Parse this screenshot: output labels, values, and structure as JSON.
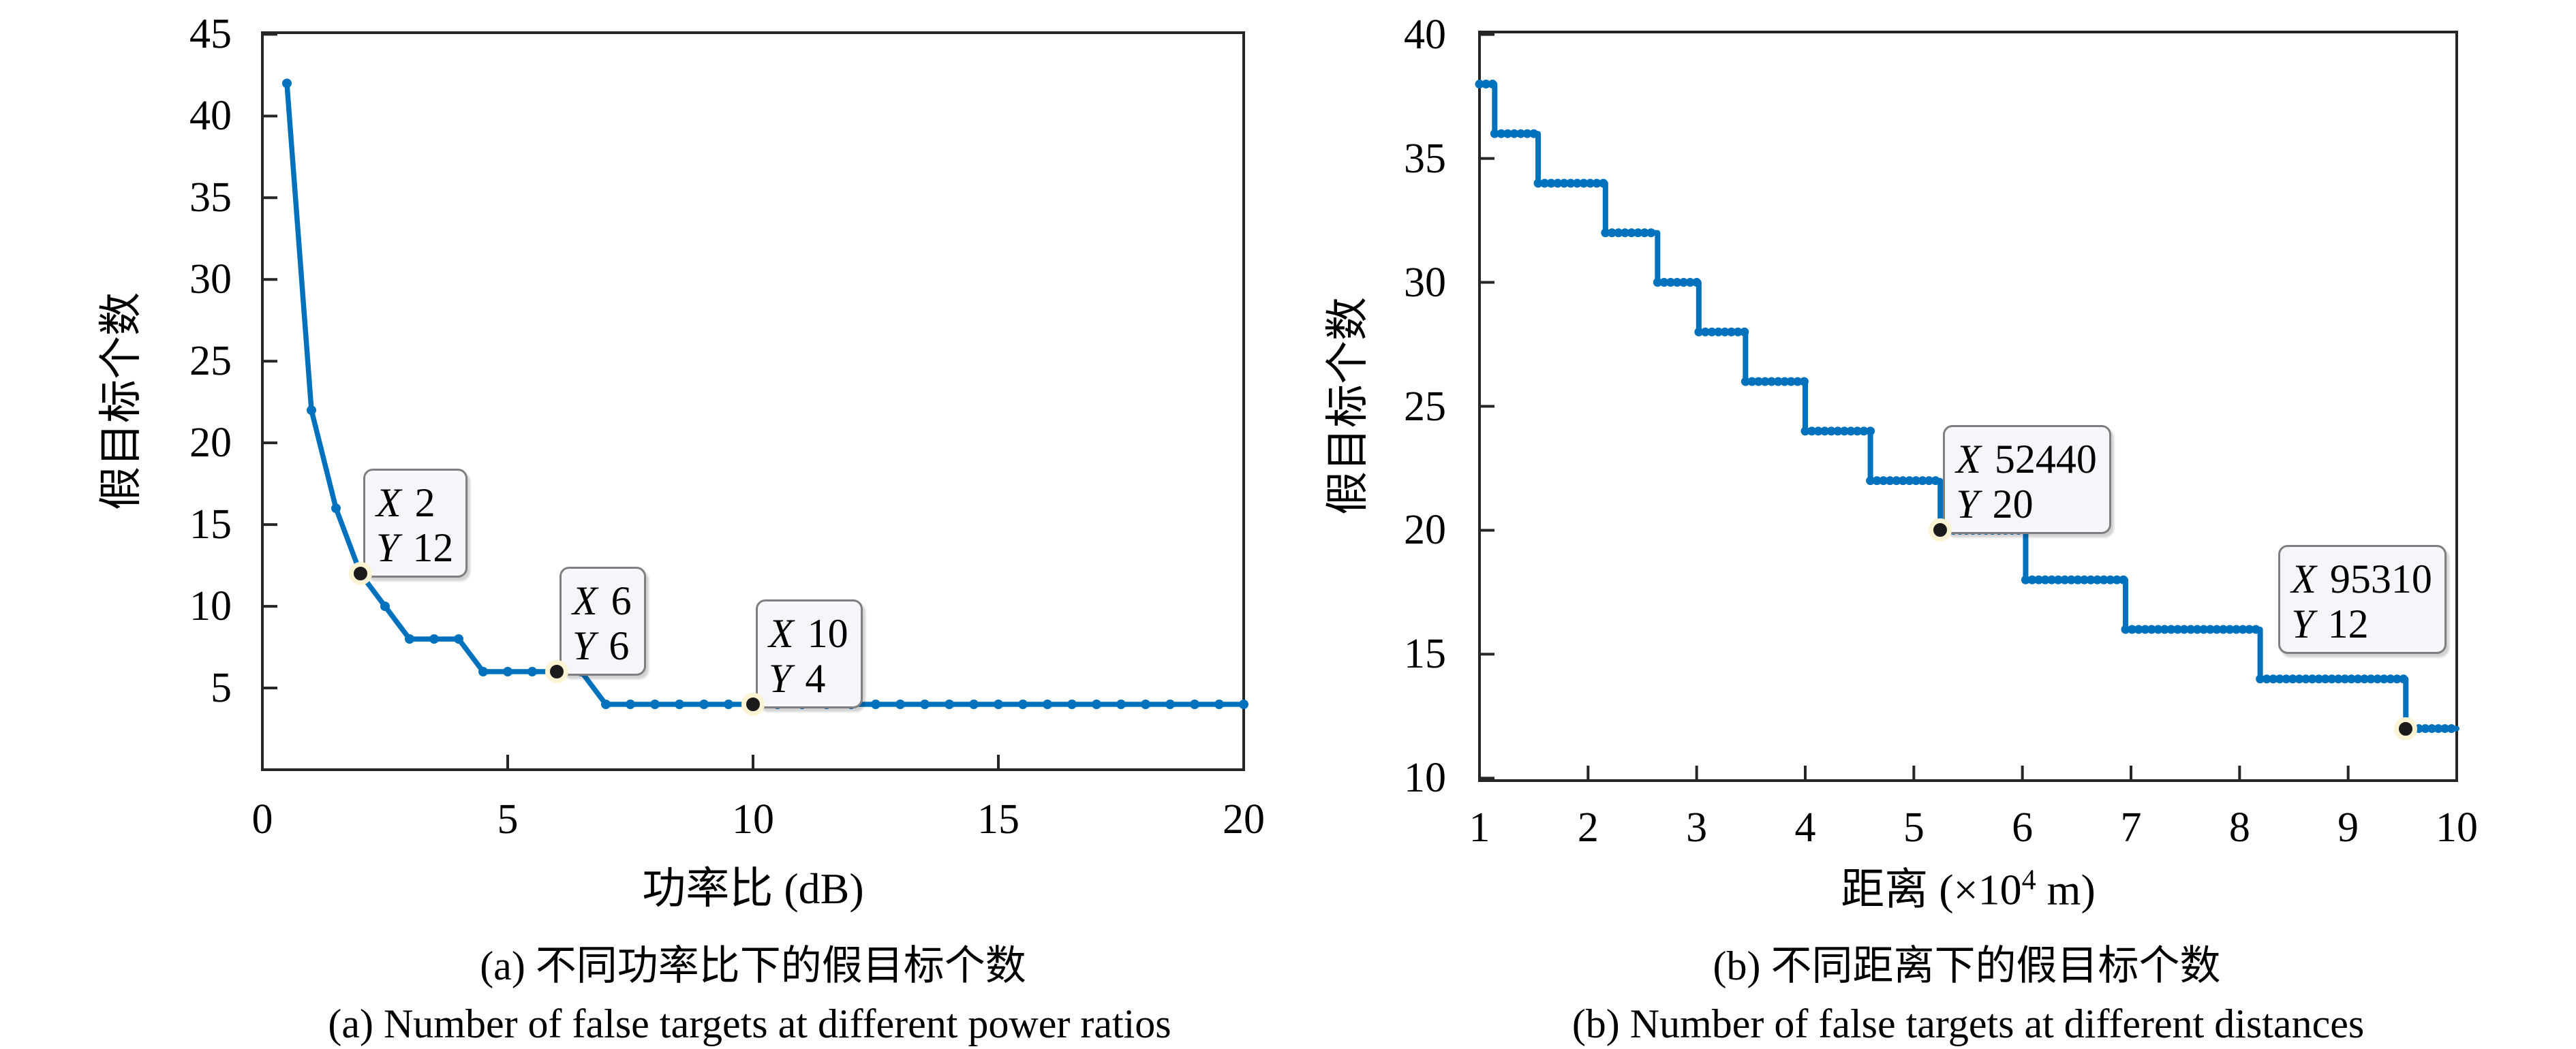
{
  "figure": {
    "background": "#ffffff",
    "line_color": "#0072BD",
    "axis_color": "#262626",
    "text_color": "#000000",
    "datatip_bg": "#f6f6fa",
    "datatip_border": "#7f7f7f",
    "highlight_dot_color": "#1a1a1a",
    "highlight_ring_color": "#fbf3d1"
  },
  "chart_data": [
    {
      "id": "power-ratio-chart",
      "type": "line",
      "title": "",
      "xlabel": "功率比 (dB)",
      "ylabel": "假目标个数",
      "caption_zh": "(a) 不同功率比下的假目标个数",
      "caption_en": "(a) Number of false targets at different power ratios",
      "xlim": [
        0,
        20
      ],
      "ylim": [
        0,
        45.1
      ],
      "xticks": [
        0,
        5,
        10,
        15,
        20
      ],
      "yticks": [
        5,
        10,
        15,
        20,
        25,
        30,
        35,
        40,
        45
      ],
      "grid": false,
      "legend": null,
      "series": [
        {
          "name": "false-target-count-vs-power-ratio",
          "x": [
            0.5,
            1,
            1.5,
            2,
            2.5,
            3,
            3.5,
            4,
            4.5,
            5,
            5.5,
            6,
            6.5,
            7,
            7.5,
            8,
            8.5,
            9,
            9.5,
            10,
            10.5,
            11,
            11.5,
            12,
            12.5,
            13,
            13.5,
            14,
            14.5,
            15,
            15.5,
            16,
            16.5,
            17,
            17.5,
            18,
            18.5,
            19,
            19.5,
            20
          ],
          "y": [
            42,
            22,
            16,
            12,
            10,
            8,
            8,
            8,
            6,
            6,
            6,
            6,
            6,
            4,
            4,
            4,
            4,
            4,
            4,
            4,
            4,
            4,
            4,
            4,
            4,
            4,
            4,
            4,
            4,
            4,
            4,
            4,
            4,
            4,
            4,
            4,
            4,
            4,
            4,
            4
          ]
        }
      ],
      "annotations": [
        {
          "x": 2,
          "y": 12,
          "var_x": "X",
          "val_x": "2",
          "var_y": "Y",
          "val_y": "12",
          "placement": "ne"
        },
        {
          "x": 6,
          "y": 6,
          "var_x": "X",
          "val_x": "6",
          "var_y": "Y",
          "val_y": "6",
          "placement": "ne"
        },
        {
          "x": 10,
          "y": 4,
          "var_x": "X",
          "val_x": "10",
          "var_y": "Y",
          "val_y": "4",
          "placement": "ne"
        }
      ]
    },
    {
      "id": "distance-chart",
      "type": "step-line",
      "title": "",
      "xlabel": "距离 (×10⁴ m)",
      "xlabel_parts": {
        "pre": "距离 (×10",
        "sup": "4",
        "post": " m)"
      },
      "ylabel": "假目标个数",
      "caption_zh": "(b) 不同距离下的假目标个数",
      "caption_en": "(b) Number of false targets at different distances",
      "xlim": [
        1,
        10
      ],
      "ylim": [
        9.9,
        40.1
      ],
      "xticks": [
        1,
        2,
        3,
        4,
        5,
        6,
        7,
        8,
        9,
        10
      ],
      "yticks": [
        10,
        15,
        20,
        25,
        30,
        35,
        40
      ],
      "grid": false,
      "legend": null,
      "marker_interval": 0.06,
      "steps": [
        {
          "x_start": 1.0,
          "x_end": 1.14,
          "y": 38
        },
        {
          "x_start": 1.14,
          "x_end": 1.54,
          "y": 36
        },
        {
          "x_start": 1.54,
          "x_end": 2.16,
          "y": 34
        },
        {
          "x_start": 2.16,
          "x_end": 2.64,
          "y": 32
        },
        {
          "x_start": 2.64,
          "x_end": 3.02,
          "y": 30
        },
        {
          "x_start": 3.02,
          "x_end": 3.45,
          "y": 28
        },
        {
          "x_start": 3.45,
          "x_end": 4.0,
          "y": 26
        },
        {
          "x_start": 4.0,
          "x_end": 4.6,
          "y": 24
        },
        {
          "x_start": 4.6,
          "x_end": 5.244,
          "y": 22
        },
        {
          "x_start": 5.244,
          "x_end": 6.03,
          "y": 20
        },
        {
          "x_start": 6.03,
          "x_end": 6.95,
          "y": 18
        },
        {
          "x_start": 6.95,
          "x_end": 8.19,
          "y": 16
        },
        {
          "x_start": 8.19,
          "x_end": 9.531,
          "y": 14
        },
        {
          "x_start": 9.531,
          "x_end": 10.0,
          "y": 12
        }
      ],
      "annotations": [
        {
          "x": 5.244,
          "y": 20,
          "var_x": "X",
          "val_x": "52440",
          "var_y": "Y",
          "val_y": "20",
          "placement": "ne"
        },
        {
          "x": 9.531,
          "y": 12,
          "var_x": "X",
          "val_x": "95310",
          "var_y": "Y",
          "val_y": "12",
          "placement": "nw"
        }
      ]
    }
  ]
}
